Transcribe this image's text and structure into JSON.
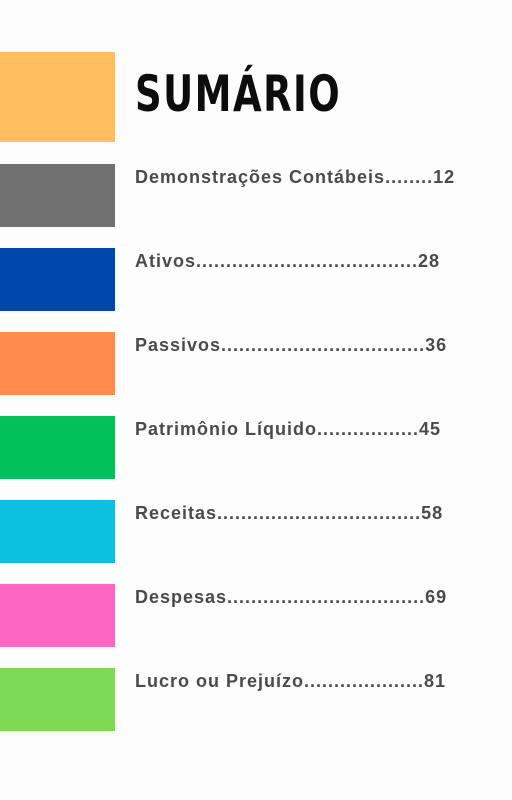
{
  "title": "SUMÁRIO",
  "colors": {
    "title_block": "#ffbf5e",
    "text": "#4a4a4a"
  },
  "toc": [
    {
      "label": "Demonstrações Contábeis........12",
      "color": "#717171"
    },
    {
      "label": "Ativos.....................................28",
      "color": "#0047ab"
    },
    {
      "label": "Passivos..................................36",
      "color": "#ff8c4c"
    },
    {
      "label": "Patrimônio Líquido.................45",
      "color": "#00c05a"
    },
    {
      "label": "Receitas..................................58",
      "color": "#0cc0df"
    },
    {
      "label": "Despesas.................................69",
      "color": "#ff66c4"
    },
    {
      "label": "Lucro ou Prejuízo....................81",
      "color": "#7ed957"
    }
  ]
}
